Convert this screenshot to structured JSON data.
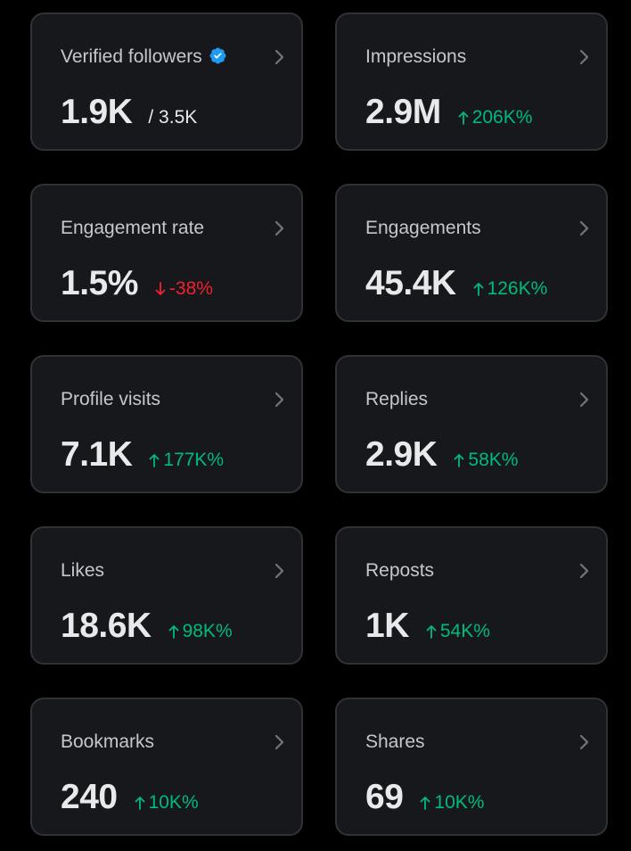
{
  "colors": {
    "card_background": "#16181c",
    "card_border": "#2f3336",
    "positive": "#00ba7c",
    "negative": "#f4212e",
    "verified": "#1d9bf0"
  },
  "cards": [
    {
      "title": "Verified followers",
      "value": "1.9K",
      "total": "/ 3.5K",
      "verified_icon": "verified-badge-icon"
    },
    {
      "title": "Impressions",
      "value": "2.9M",
      "change": "206K%",
      "direction": "up"
    },
    {
      "title": "Engagement rate",
      "value": "1.5%",
      "change": "-38%",
      "direction": "down"
    },
    {
      "title": "Engagements",
      "value": "45.4K",
      "change": "126K%",
      "direction": "up"
    },
    {
      "title": "Profile visits",
      "value": "7.1K",
      "change": "177K%",
      "direction": "up"
    },
    {
      "title": "Replies",
      "value": "2.9K",
      "change": "58K%",
      "direction": "up"
    },
    {
      "title": "Likes",
      "value": "18.6K",
      "change": "98K%",
      "direction": "up"
    },
    {
      "title": "Reposts",
      "value": "1K",
      "change": "54K%",
      "direction": "up"
    },
    {
      "title": "Bookmarks",
      "value": "240",
      "change": "10K%",
      "direction": "up"
    },
    {
      "title": "Shares",
      "value": "69",
      "change": "10K%",
      "direction": "up"
    }
  ]
}
